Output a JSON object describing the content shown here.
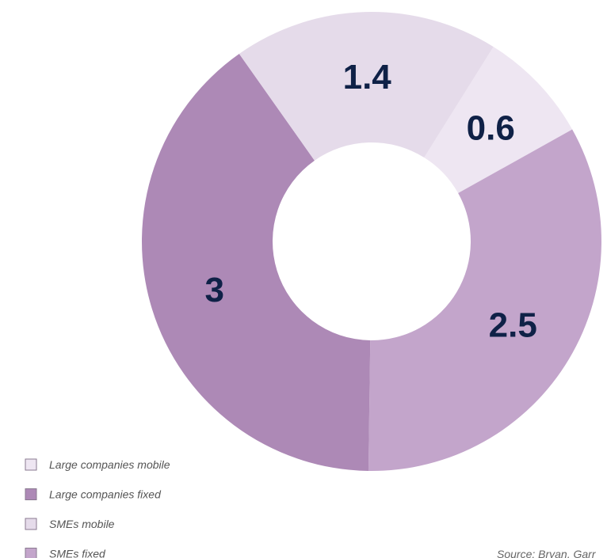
{
  "chart_data": {
    "type": "donut",
    "categories": [
      "Large companies mobile",
      "Large companies fixed",
      "SMEs mobile",
      "SMEs fixed"
    ],
    "values": [
      0.6,
      3,
      1.4,
      2.5
    ],
    "colors": [
      "#eee6f2",
      "#ad89b6",
      "#e5dbea",
      "#c3a5cb"
    ],
    "legend": "bottom-left",
    "source": "Source: Bryan, Garr"
  }
}
